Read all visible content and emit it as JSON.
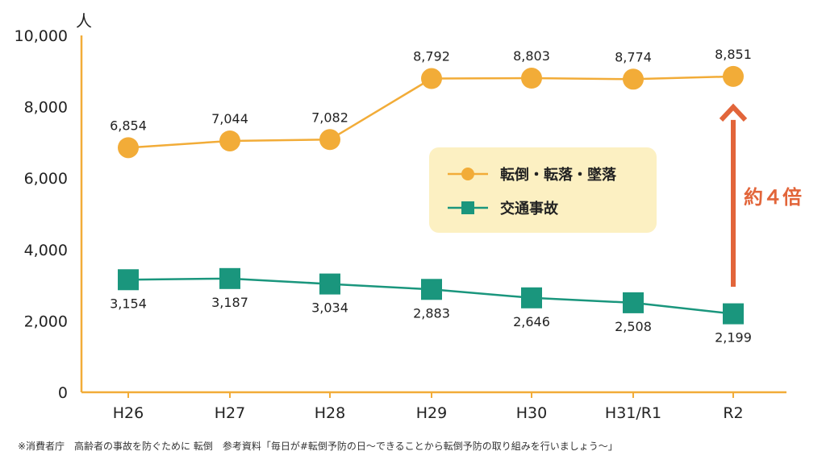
{
  "chart_data": {
    "type": "line",
    "unit": "人",
    "categories": [
      "H26",
      "H27",
      "H28",
      "H29",
      "H30",
      "H31/R1",
      "R2"
    ],
    "ylim": [
      0,
      10000
    ],
    "yticks": [
      "0",
      "2,000",
      "4,000",
      "6,000",
      "8,000",
      "10,000"
    ],
    "series": [
      {
        "name": "転倒・転落・墜落",
        "marker": "circle",
        "color": "#f2ac38",
        "values": [
          6854,
          7044,
          7082,
          8792,
          8803,
          8774,
          8851
        ],
        "labels": [
          "6,854",
          "7,044",
          "7,082",
          "8,792",
          "8,803",
          "8,774",
          "8,851"
        ]
      },
      {
        "name": "交通事故",
        "marker": "square",
        "color": "#1a967d",
        "values": [
          3154,
          3187,
          3034,
          2883,
          2646,
          2508,
          2199
        ],
        "labels": [
          "3,154",
          "3,187",
          "3,034",
          "2,883",
          "2,646",
          "2,508",
          "2,199"
        ]
      }
    ],
    "legend_position": "center-right",
    "annotation": {
      "text": "約４倍",
      "color": "#e2653a"
    },
    "grid": false
  },
  "source_note": "※消費者庁　高齢者の事故を防ぐために 転倒　参考資料「毎日が#転倒予防の日〜できることから転倒予防の取り組みを行いましょう〜」",
  "colors": {
    "axis": "#f2ac38",
    "legend_bg": "#fcf0c2"
  }
}
